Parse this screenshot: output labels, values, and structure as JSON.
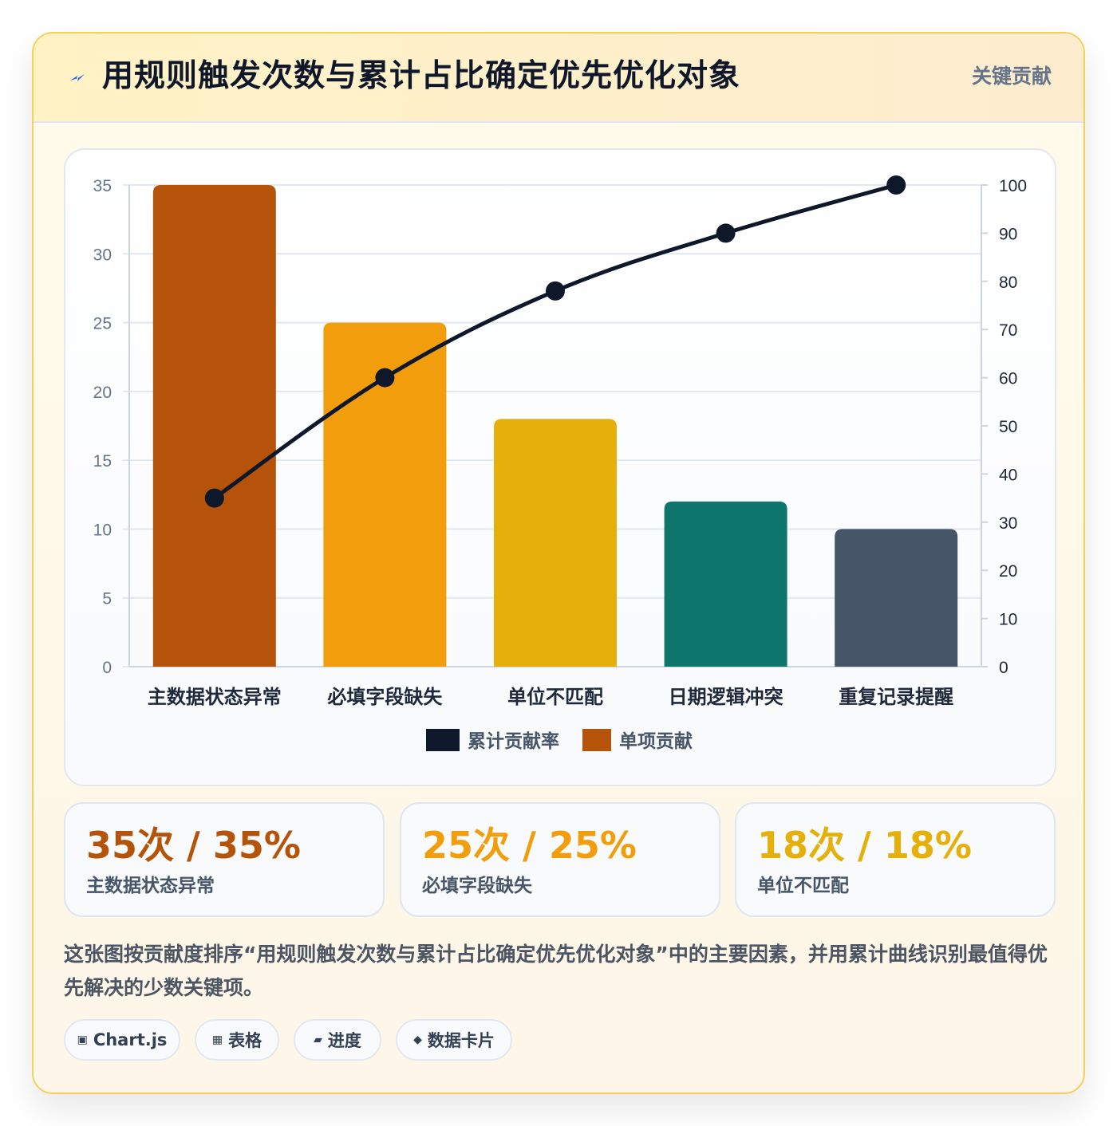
{
  "header": {
    "title": "用规则触发次数与累计占比确定优先优化对象",
    "tag": "关键贡献",
    "icon": "bolt-icon"
  },
  "chart_data": {
    "type": "bar",
    "categories": [
      "主数据状态异常",
      "必填字段缺失",
      "单位不匹配",
      "日期逻辑冲突",
      "重复记录提醒"
    ],
    "series": [
      {
        "name": "单项贡献",
        "type": "bar",
        "axis": "left",
        "values": [
          35,
          25,
          18,
          12,
          10
        ],
        "colors": [
          "#b45309",
          "#f29e0c",
          "#e6b00b",
          "#0f766e",
          "#475569"
        ]
      },
      {
        "name": "累计贡献率",
        "type": "line",
        "axis": "right",
        "values": [
          35,
          60,
          78,
          90,
          100
        ],
        "color": "#0f172a"
      }
    ],
    "y_left": {
      "min": 0,
      "max": 35,
      "ticks": [
        "0",
        "5",
        "10",
        "15",
        "20",
        "25",
        "30",
        "35"
      ]
    },
    "y_right": {
      "min": 0,
      "max": 100,
      "ticks": [
        "0",
        "10",
        "20",
        "30",
        "40",
        "50",
        "60",
        "70",
        "80",
        "90",
        "100"
      ]
    },
    "legend": [
      "累计贡献率",
      "单项贡献"
    ],
    "legend_position": "bottom",
    "grid": true
  },
  "stats": [
    {
      "value": "35次 / 35%",
      "label": "主数据状态异常",
      "color": "#b45309"
    },
    {
      "value": "25次 / 25%",
      "label": "必填字段缺失",
      "color": "#f29e0c"
    },
    {
      "value": "18次 / 18%",
      "label": "单位不匹配",
      "color": "#e6b00b"
    }
  ],
  "description": "这张图按贡献度排序“用规则触发次数与累计占比确定优先优化对象”中的主要因素，并用累计曲线识别最值得优先解决的少数关键项。",
  "chips": [
    {
      "icon": "▣",
      "label": "Chart.js"
    },
    {
      "icon": "▦",
      "label": "表格"
    },
    {
      "icon": "▰",
      "label": "进度"
    },
    {
      "icon": "◆",
      "label": "数据卡片"
    }
  ]
}
